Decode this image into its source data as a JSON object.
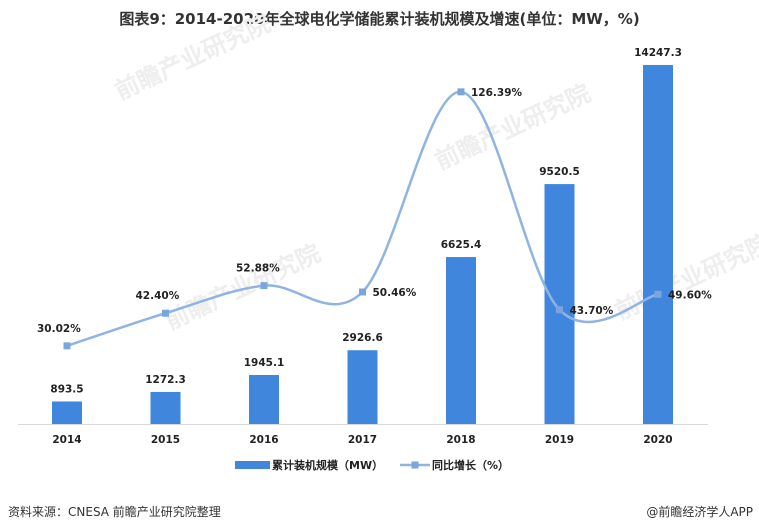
{
  "title": "图表9：2014-2020年全球电化学储能累计装机规模及增速(单位：MW，%)",
  "source": "资料来源：CNESA 前瞻产业研究院整理",
  "brand": "@前瞻经济学人APP",
  "watermark": "前瞻产业研究院",
  "chart_data": {
    "type": "bar+line",
    "title": "图表9：2014-2020年全球电化学储能累计装机规模及增速(单位：MW，%)",
    "categories": [
      "2014",
      "2015",
      "2016",
      "2017",
      "2018",
      "2019",
      "2020"
    ],
    "series": [
      {
        "name": "累计装机规模（MW）",
        "type": "bar",
        "color": "#3f86dc",
        "values": [
          893.5,
          1272.3,
          1945.1,
          2926.6,
          6625.4,
          9520.5,
          14247.3
        ],
        "labels": [
          "893.5",
          "1272.3",
          "1945.1",
          "2926.6",
          "6625.4",
          "9520.5",
          "14247.3"
        ]
      },
      {
        "name": "同比增长（%）",
        "type": "line",
        "color": "#8fb4e3",
        "marker_color": "#7aa6dc",
        "smooth": true,
        "values": [
          30.02,
          42.4,
          52.88,
          50.46,
          126.39,
          43.7,
          49.6
        ],
        "labels": [
          "30.02%",
          "42.40%",
          "52.88%",
          "50.46%",
          "126.39%",
          "43.70%",
          "49.60%"
        ]
      }
    ],
    "legend": "bottom",
    "grid": false
  }
}
